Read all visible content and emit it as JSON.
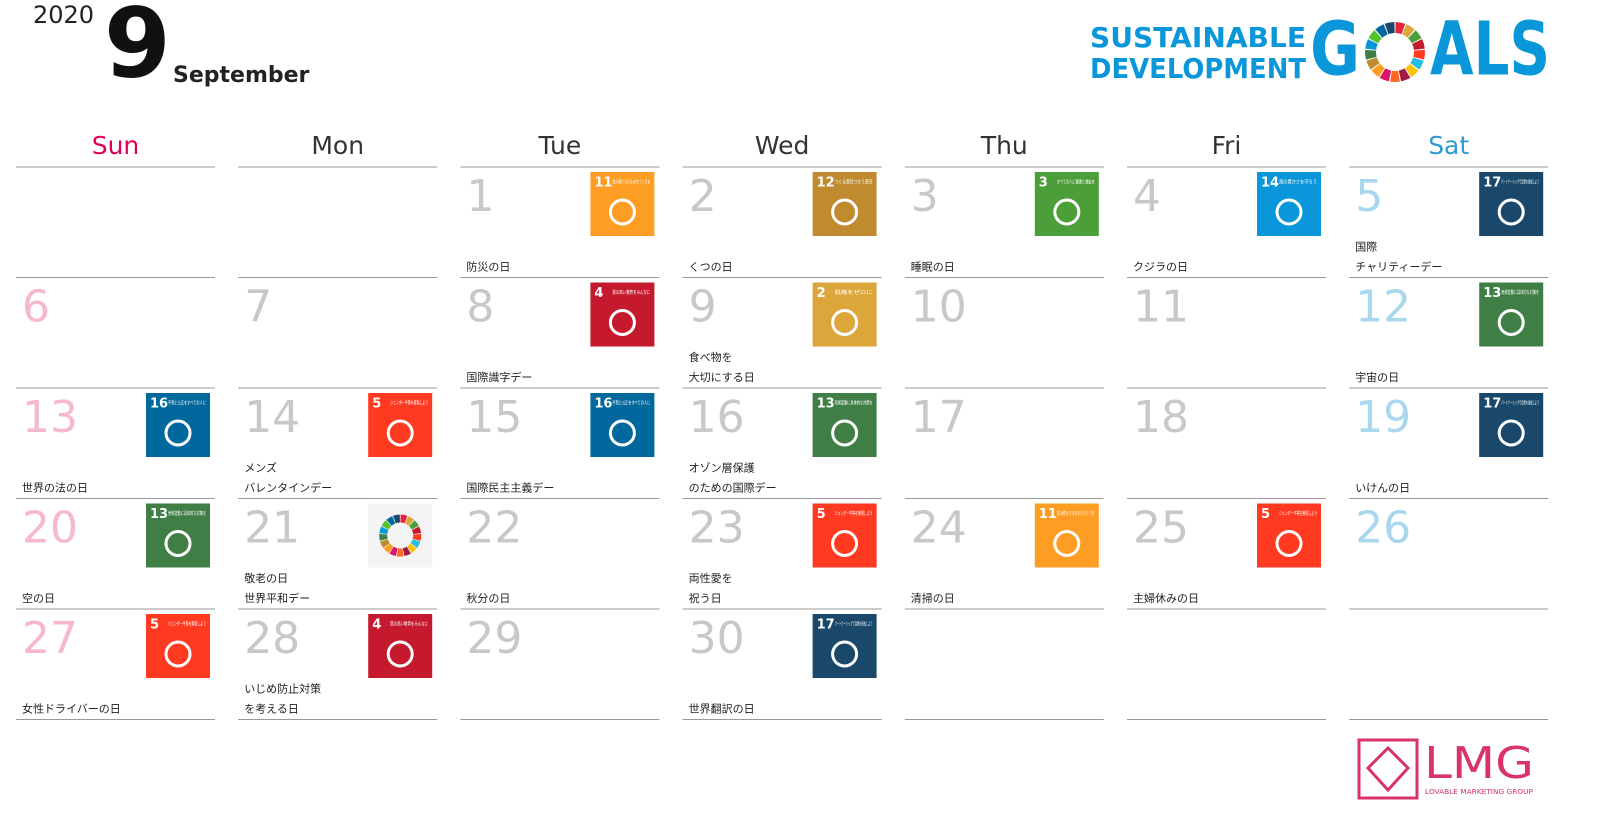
{
  "header": {
    "year": "2020",
    "month_number": "9",
    "month_name": "September"
  },
  "logo": {
    "line1": "SUSTAINABLE",
    "line2": "DEVELOPMENT",
    "goals_left": "G",
    "goals_right": "ALS",
    "color": "#0a97d9"
  },
  "brand": {
    "name": "LMG",
    "tagline": "LOVABLE MARKETING GROUP",
    "color": "#d8336a"
  },
  "weekdays": [
    {
      "label": "Sun",
      "color": "#e0005a",
      "day_color": "#f5b9cb"
    },
    {
      "label": "Mon",
      "color": "#333333",
      "day_color": "#c8c8c8"
    },
    {
      "label": "Tue",
      "color": "#333333",
      "day_color": "#c8c8c8"
    },
    {
      "label": "Wed",
      "color": "#333333",
      "day_color": "#c8c8c8"
    },
    {
      "label": "Thu",
      "color": "#333333",
      "day_color": "#c8c8c8"
    },
    {
      "label": "Fri",
      "color": "#333333",
      "day_color": "#c8c8c8"
    },
    {
      "label": "Sat",
      "color": "#2e9ad0",
      "day_color": "#a9d8ee"
    }
  ],
  "weeks": [
    [
      null,
      null,
      {
        "day": 1,
        "event": [
          "防災の日"
        ],
        "goal": {
          "number": "11",
          "title": "住み続けられるまちづくりを",
          "color": "#fd9d24"
        }
      },
      {
        "day": 2,
        "event": [
          "くつの日"
        ],
        "goal": {
          "number": "12",
          "title": "つくる責任つかう責任",
          "color": "#bf8b2e"
        }
      },
      {
        "day": 3,
        "event": [
          "睡眠の日"
        ],
        "goal": {
          "number": "3",
          "title": "すべての人に健康と福祉を",
          "color": "#4c9f38"
        }
      },
      {
        "day": 4,
        "event": [
          "クジラの日"
        ],
        "goal": {
          "number": "14",
          "title": "海の豊かさを守ろう",
          "color": "#0a97d9"
        }
      },
      {
        "day": 5,
        "event": [
          "国際",
          "チャリティーデー"
        ],
        "goal": {
          "number": "17",
          "title": "パートナーシップで目標を達成しよう",
          "color": "#19486a"
        }
      }
    ],
    [
      {
        "day": 6
      },
      {
        "day": 7
      },
      {
        "day": 8,
        "event": [
          "国際識字デー"
        ],
        "goal": {
          "number": "4",
          "title": "質の高い教育をみんなに",
          "color": "#c5192d"
        }
      },
      {
        "day": 9,
        "event": [
          "食べ物を",
          "大切にする日"
        ],
        "goal": {
          "number": "2",
          "title": "飢餓をゼロに",
          "color": "#dda63a"
        }
      },
      {
        "day": 10
      },
      {
        "day": 11
      },
      {
        "day": 12,
        "event": [
          "宇宙の日"
        ],
        "goal": {
          "number": "13",
          "title": "気候変動に具体的な対策を",
          "color": "#3f7e44"
        }
      }
    ],
    [
      {
        "day": 13,
        "event": [
          "世界の法の日"
        ],
        "goal": {
          "number": "16",
          "title": "平和と公正をすべての人に",
          "color": "#00689d"
        }
      },
      {
        "day": 14,
        "event": [
          "メンズ",
          "バレンタインデー"
        ],
        "goal": {
          "number": "5",
          "title": "ジェンダー平等を実現しよう",
          "color": "#ff3a21"
        }
      },
      {
        "day": 15,
        "event": [
          "国際民主主義デー"
        ],
        "goal": {
          "number": "16",
          "title": "平和と公正をすべての人に",
          "color": "#00689d"
        }
      },
      {
        "day": 16,
        "event": [
          "オゾン層保護",
          "のための国際デー"
        ],
        "goal": {
          "number": "13",
          "title": "気候変動に具体的な対策を",
          "color": "#3f7e44"
        }
      },
      {
        "day": 17
      },
      {
        "day": 18
      },
      {
        "day": 19,
        "event": [
          "いけんの日"
        ],
        "goal": {
          "number": "17",
          "title": "パートナーシップで目標を達成しよう",
          "color": "#19486a"
        }
      }
    ],
    [
      {
        "day": 20,
        "event": [
          "空の日"
        ],
        "goal": {
          "number": "13",
          "title": "気候変動に具体的な対策を",
          "color": "#3f7e44"
        }
      },
      {
        "day": 21,
        "event": [
          "敬老の日",
          "世界平和デー"
        ],
        "icon": "wheel"
      },
      {
        "day": 22,
        "event": [
          "秋分の日"
        ]
      },
      {
        "day": 23,
        "event": [
          "両性愛を",
          "祝う日"
        ],
        "goal": {
          "number": "5",
          "title": "ジェンダー平等を実現しよう",
          "color": "#ff3a21"
        }
      },
      {
        "day": 24,
        "event": [
          "清掃の日"
        ],
        "goal": {
          "number": "11",
          "title": "住み続けられるまちづくりを",
          "color": "#fd9d24"
        }
      },
      {
        "day": 25,
        "event": [
          "主婦休みの日"
        ],
        "goal": {
          "number": "5",
          "title": "ジェンダー平等を実現しよう",
          "color": "#ff3a21"
        }
      },
      {
        "day": 26
      }
    ],
    [
      {
        "day": 27,
        "event": [
          "女性ドライバーの日"
        ],
        "goal": {
          "number": "5",
          "title": "ジェンダー平等を実現しよう",
          "color": "#ff3a21"
        }
      },
      {
        "day": 28,
        "event": [
          "いじめ防止対策",
          "を考える日"
        ],
        "goal": {
          "number": "4",
          "title": "質の高い教育をみんなに",
          "color": "#c5192d"
        }
      },
      {
        "day": 29
      },
      {
        "day": 30,
        "event": [
          "世界翻訳の日"
        ],
        "goal": {
          "number": "17",
          "title": "パートナーシップで目標を達成しよう",
          "color": "#19486a"
        }
      },
      null,
      null,
      null
    ]
  ]
}
